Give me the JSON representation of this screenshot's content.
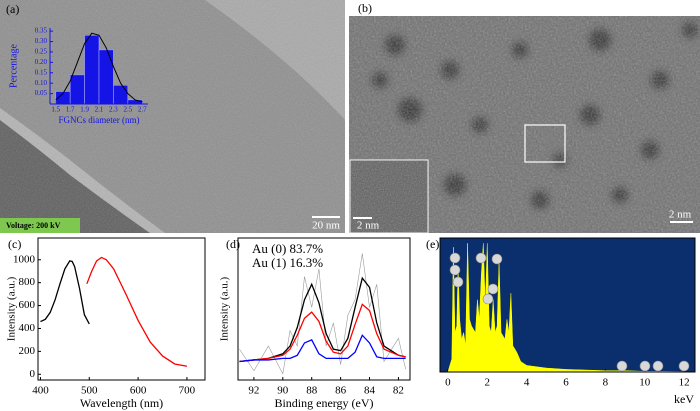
{
  "images": [
    {
      "label": "(a)",
      "voltage": "Voltage:  200 kV",
      "scale_bar": "20 nm"
    },
    {
      "label": "(b)",
      "inset_scale_bar": "2 nm",
      "scale_bar": "2 nm"
    }
  ],
  "chart_data": [
    {
      "type": "histogram",
      "xlabel": "FGNCs diameter (nm)",
      "ylabel": "Percentage",
      "bins": [
        1.5,
        1.7,
        1.9,
        2.1,
        2.3,
        2.5,
        2.7
      ],
      "values": [
        0.06,
        0.14,
        0.33,
        0.26,
        0.09,
        0.02
      ],
      "color": "#1414e6",
      "fit_x": [
        1.5,
        1.6,
        1.7,
        1.8,
        1.9,
        2.0,
        2.1,
        2.2,
        2.3,
        2.4,
        2.5,
        2.6,
        2.7
      ],
      "fit_y": [
        0.02,
        0.05,
        0.11,
        0.2,
        0.29,
        0.34,
        0.33,
        0.27,
        0.18,
        0.1,
        0.05,
        0.02,
        0.01
      ],
      "fit_color": "#000000",
      "xlim": [
        1.42,
        2.78
      ],
      "ylim": [
        0,
        0.365
      ],
      "yticks": [
        0.05,
        {
          "value": 0.1,
          "label": "0.10"
        },
        0.15,
        {
          "value": 0.2,
          "label": "0.20"
        },
        0.25,
        {
          "value": 0.3,
          "label": "0.30"
        },
        0.35
      ]
    },
    {
      "type": "line",
      "panel_label": "(c)",
      "xlabel": "Wavelength (nm)",
      "ylabel": "Intensity (a.u.)",
      "series": [
        {
          "color": "#000000",
          "x": [
            400,
            410,
            420,
            430,
            440,
            450,
            460,
            465,
            470,
            480,
            490,
            500
          ],
          "values": [
            460,
            480,
            540,
            650,
            790,
            920,
            990,
            985,
            940,
            750,
            520,
            440
          ]
        },
        {
          "color": "#ff0000",
          "x": [
            495,
            505,
            515,
            525,
            535,
            550,
            575,
            600,
            625,
            650,
            675,
            700
          ],
          "values": [
            790,
            900,
            990,
            1020,
            1000,
            920,
            700,
            470,
            280,
            160,
            90,
            70
          ]
        }
      ],
      "xlim": [
        395,
        737
      ],
      "ylim": [
        -50,
        1190
      ],
      "xticks": [
        400,
        500,
        600,
        700
      ],
      "yticks": [
        0,
        200,
        400,
        600,
        800,
        1000
      ]
    },
    {
      "type": "line",
      "panel_label": "(d)",
      "xlabel": "Binding energy (eV)",
      "ylabel": "Intensity (a.u.)",
      "annotations": [
        "Au (0) 83.7%",
        "Au (1) 16.3%"
      ],
      "x": [
        93,
        92,
        91,
        90,
        89.5,
        89,
        88.5,
        88,
        87.5,
        87,
        86.5,
        86,
        85.5,
        85,
        84.5,
        84,
        83.5,
        83,
        82,
        81.5
      ],
      "series": [
        {
          "color": "#9a9a9a",
          "values": [
            28,
            14,
            30,
            12,
            40,
            30,
            75,
            55,
            80,
            30,
            45,
            18,
            50,
            60,
            90,
            55,
            70,
            20,
            35,
            15
          ]
        },
        {
          "color": "#000000",
          "values": [
            20,
            21,
            22,
            25,
            30,
            42,
            60,
            70,
            58,
            38,
            28,
            27,
            35,
            55,
            74,
            68,
            45,
            30,
            24,
            23
          ]
        },
        {
          "color": "#ff0000",
          "values": [
            20,
            21,
            22,
            24,
            28,
            37,
            48,
            52,
            46,
            33,
            26,
            25,
            30,
            44,
            57,
            53,
            38,
            28,
            24,
            23
          ]
        },
        {
          "color": "#0000ff",
          "values": [
            20,
            21,
            21,
            22,
            22,
            24,
            32,
            34,
            25,
            22,
            22,
            22,
            22,
            26,
            37,
            32,
            23,
            22,
            22,
            22
          ]
        }
      ],
      "xlim": [
        93.1,
        81.2
      ],
      "ylim": [
        8,
        100
      ],
      "xticks": [
        92,
        90,
        88,
        86,
        84,
        82
      ]
    },
    {
      "type": "area",
      "panel_label": "(e)",
      "xlabel": "keV",
      "color": "#ffff00",
      "background": "#0b2f6c",
      "x": [
        0,
        0.2,
        0.28,
        0.36,
        0.45,
        0.52,
        0.6,
        0.7,
        0.8,
        0.9,
        1.0,
        1.1,
        1.2,
        1.4,
        1.5,
        1.6,
        1.7,
        1.8,
        1.9,
        2.0,
        2.1,
        2.2,
        2.3,
        2.4,
        2.5,
        2.6,
        2.7,
        2.9,
        3.0,
        3.1,
        3.2,
        3.3,
        3.5,
        3.7,
        4,
        5,
        6,
        7,
        8,
        9,
        10,
        11,
        12
      ],
      "values": [
        0,
        10,
        95,
        30,
        35,
        80,
        40,
        25,
        30,
        20,
        98,
        40,
        35,
        30,
        55,
        40,
        75,
        98,
        50,
        98,
        35,
        30,
        55,
        30,
        35,
        85,
        30,
        25,
        40,
        30,
        60,
        20,
        15,
        8,
        5,
        3,
        2,
        1.5,
        1,
        1,
        0.5,
        0.5,
        0.3
      ],
      "xlim": [
        -0.4,
        12.55
      ],
      "ylim": [
        0,
        102
      ],
      "xticks": [
        0,
        2,
        4,
        6,
        8,
        10,
        12
      ]
    }
  ]
}
